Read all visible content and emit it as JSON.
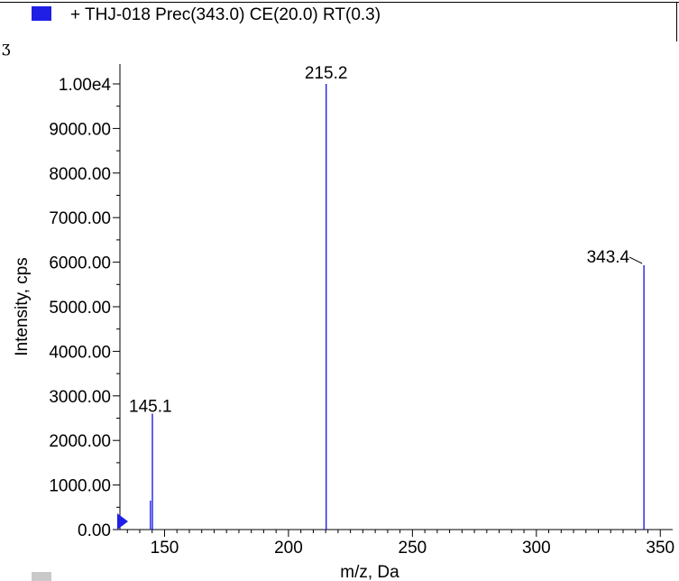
{
  "legend": {
    "text": "+ THJ-018 Prec(343.0) CE(20.0) RT(0.3)",
    "swatch_color": "#1f1fe6"
  },
  "corner_mark": "ʒ",
  "chart_data": {
    "type": "bar",
    "xlabel": "m/z, Da",
    "ylabel": "Intensity, cps",
    "xlim": [
      132,
      355
    ],
    "ylim": [
      0,
      10000
    ],
    "x_ticks": [
      150,
      200,
      250,
      300,
      350
    ],
    "y_ticks": [
      0,
      1000,
      2000,
      3000,
      4000,
      5000,
      6000,
      7000,
      8000,
      9000,
      10000
    ],
    "y_tick_labels": [
      "0.00",
      "1000.00",
      "2000.00",
      "3000.00",
      "4000.00",
      "5000.00",
      "6000.00",
      "7000.00",
      "8000.00",
      "9000.00",
      "1.00e4"
    ],
    "series": [
      {
        "color": "#1f1fe6",
        "peaks": [
          {
            "mz": 144.3,
            "intensity": 650
          },
          {
            "mz": 145.1,
            "intensity": 2600,
            "label": "145.1"
          },
          {
            "mz": 215.2,
            "intensity": 10000,
            "label": "215.2"
          },
          {
            "mz": 343.4,
            "intensity": 5930,
            "label": "343.4"
          }
        ]
      }
    ],
    "grid": false
  }
}
